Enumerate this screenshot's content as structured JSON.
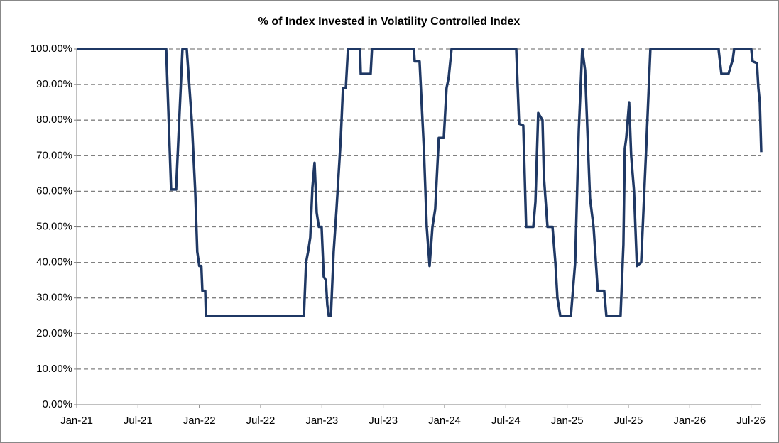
{
  "chart_data": {
    "type": "line",
    "title": "% of Index Invested in Volatility Controlled Index",
    "x": [
      0,
      8.76,
      9.24,
      9.73,
      10.35,
      10.77,
      11.26,
      11.6,
      11.8,
      12.0,
      12.2,
      12.3,
      12.58,
      12.65,
      22.24,
      22.45,
      22.65,
      22.86,
      23.07,
      23.28,
      23.49,
      23.7,
      23.97,
      24.18,
      24.39,
      24.53,
      24.67,
      24.88,
      25.15,
      25.43,
      25.85,
      26.06,
      26.34,
      26.55,
      27.73,
      27.8,
      28.77,
      28.9,
      33.0,
      33.08,
      33.56,
      33.98,
      34.26,
      34.54,
      34.82,
      35.09,
      35.44,
      35.93,
      36.2,
      36.41,
      36.69,
      43.02,
      43.3,
      43.71,
      43.99,
      44.69,
      44.9,
      45.17,
      45.59,
      45.73,
      46.08,
      46.57,
      46.85,
      47.05,
      47.33,
      48.37,
      48.79,
      49.14,
      49.48,
      49.76,
      50.24,
      50.59,
      51.0,
      51.63,
      51.84,
      53.23,
      53.51,
      53.65,
      53.79,
      54.07,
      54.27,
      54.55,
      54.83,
      55.25,
      55.74,
      56.15,
      62.82,
      63.1,
      63.79,
      64.21,
      64.35,
      66.02,
      66.16,
      66.58,
      66.72,
      66.86,
      67.0
    ],
    "series": [
      {
        "color": "#1f3864",
        "values": [
          100,
          100,
          60.5,
          60.5,
          100,
          100,
          80,
          60,
          43,
          39,
          39,
          32,
          32,
          25,
          25,
          40,
          43,
          47,
          61,
          68,
          54,
          50,
          50,
          36,
          35,
          28,
          25,
          25,
          43,
          55,
          75,
          89,
          89,
          100,
          100,
          93,
          93,
          100,
          100,
          96.5,
          96.5,
          72,
          50,
          39,
          50,
          55,
          75,
          75,
          89,
          92,
          100,
          100,
          79,
          78.5,
          50,
          50,
          57,
          82,
          80,
          64,
          50,
          50,
          40,
          30,
          25,
          25,
          40,
          77,
          100,
          94,
          58,
          50,
          32,
          32,
          25,
          25,
          45,
          72,
          75,
          85,
          70,
          60,
          39,
          40,
          72,
          100,
          100,
          93,
          93,
          97,
          100,
          100,
          96.5,
          96,
          89,
          85,
          71
        ]
      }
    ],
    "xlim": [
      0,
      67
    ],
    "xticks": [
      {
        "value": 0,
        "label": "Jan-21"
      },
      {
        "value": 6,
        "label": "Jul-21"
      },
      {
        "value": 12,
        "label": "Jan-22"
      },
      {
        "value": 18,
        "label": "Jul-22"
      },
      {
        "value": 24,
        "label": "Jan-23"
      },
      {
        "value": 30,
        "label": "Jul-23"
      },
      {
        "value": 36,
        "label": "Jan-24"
      },
      {
        "value": 42,
        "label": "Jul-24"
      },
      {
        "value": 48,
        "label": "Jan-25"
      },
      {
        "value": 54,
        "label": "Jul-25"
      },
      {
        "value": 60,
        "label": "Jan-26"
      },
      {
        "value": 66,
        "label": "Jul-26"
      }
    ],
    "ylim": [
      0,
      100
    ],
    "yticks": [
      {
        "value": 0,
        "label": "0.00%"
      },
      {
        "value": 10,
        "label": "10.00%"
      },
      {
        "value": 20,
        "label": "20.00%"
      },
      {
        "value": 30,
        "label": "30.00%"
      },
      {
        "value": 40,
        "label": "40.00%"
      },
      {
        "value": 50,
        "label": "50.00%"
      },
      {
        "value": 60,
        "label": "60.00%"
      },
      {
        "value": 70,
        "label": "70.00%"
      },
      {
        "value": 80,
        "label": "80.00%"
      },
      {
        "value": 90,
        "label": "90.00%"
      },
      {
        "value": 100,
        "label": "100.00%"
      }
    ],
    "grid": true
  }
}
